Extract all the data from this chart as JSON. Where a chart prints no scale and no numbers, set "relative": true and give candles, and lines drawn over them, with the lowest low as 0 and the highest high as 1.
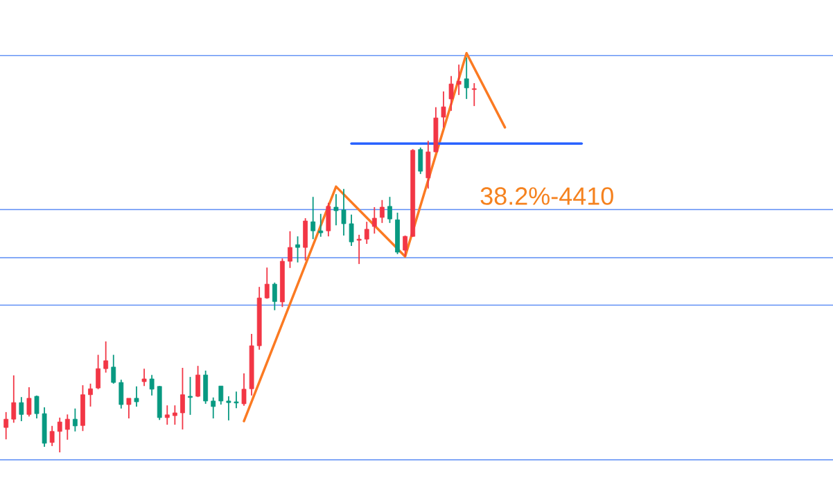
{
  "chart_data": {
    "type": "candlestick",
    "relative": true,
    "categories": [
      null,
      null,
      null,
      null,
      null,
      null,
      null,
      null,
      null,
      null,
      null,
      null,
      null,
      null,
      null,
      null,
      null,
      null,
      null,
      null,
      null,
      null,
      null,
      null,
      null,
      null,
      null,
      null,
      null,
      null,
      null,
      null,
      null,
      null,
      null,
      null,
      null,
      null,
      null,
      null,
      null,
      null,
      null,
      null,
      null,
      null,
      null,
      null,
      null,
      null,
      null,
      null,
      null,
      null,
      null,
      null,
      null,
      null,
      null,
      null,
      null,
      null,
      null,
      null,
      null,
      null,
      null,
      null,
      null,
      null,
      null,
      null,
      null,
      null,
      null,
      null
    ],
    "ohlc": [
      [
        0.063,
        0.102,
        0.033,
        0.084
      ],
      [
        0.084,
        0.195,
        0.075,
        0.126
      ],
      [
        0.126,
        0.14,
        0.079,
        0.096
      ],
      [
        0.096,
        0.165,
        0.091,
        0.137
      ],
      [
        0.142,
        0.144,
        0.086,
        0.098
      ],
      [
        0.098,
        0.114,
        0.014,
        0.023
      ],
      [
        0.025,
        0.067,
        0.016,
        0.053
      ],
      [
        0.053,
        0.088,
        0,
        0.077
      ],
      [
        0.058,
        0.096,
        0.032,
        0.084
      ],
      [
        0.084,
        0.111,
        0.053,
        0.067
      ],
      [
        0.068,
        0.17,
        0.054,
        0.146
      ],
      [
        0.146,
        0.174,
        0.116,
        0.161
      ],
      [
        0.163,
        0.247,
        0.16,
        0.212
      ],
      [
        0.212,
        0.281,
        0.202,
        0.232
      ],
      [
        0.216,
        0.247,
        0.174,
        0.177
      ],
      [
        0.177,
        0.184,
        0.111,
        0.121
      ],
      [
        0.121,
        0.137,
        0.086,
        0.137
      ],
      [
        0.137,
        0.167,
        0.116,
        0.128
      ],
      [
        0.179,
        0.212,
        0.168,
        0.186
      ],
      [
        0.186,
        0.196,
        0.144,
        0.16
      ],
      [
        0.167,
        0.168,
        0.082,
        0.088
      ],
      [
        0.088,
        0.119,
        0.07,
        0.095
      ],
      [
        0.093,
        0.119,
        0.07,
        0.1
      ],
      [
        0.1,
        0.214,
        0.058,
        0.146
      ],
      [
        0.142,
        0.191,
        0.095,
        0.139
      ],
      [
        0.142,
        0.219,
        0.14,
        0.196
      ],
      [
        0.196,
        0.207,
        0.123,
        0.13
      ],
      [
        0.13,
        0.139,
        0.086,
        0.116
      ],
      [
        0.168,
        0.168,
        0.121,
        0.13
      ],
      [
        0.13,
        0.142,
        0.081,
        0.126
      ],
      [
        0.128,
        0.154,
        0.112,
        0.125
      ],
      [
        0.123,
        0.2,
        0.118,
        0.16
      ],
      [
        0.161,
        0.3,
        0.144,
        0.27
      ],
      [
        0.27,
        0.419,
        0.26,
        0.391
      ],
      [
        0.391,
        0.468,
        0.389,
        0.426
      ],
      [
        0.426,
        0.43,
        0.36,
        0.382
      ],
      [
        0.381,
        0.491,
        0.368,
        0.484
      ],
      [
        0.484,
        0.56,
        0.467,
        0.519
      ],
      [
        0.526,
        0.547,
        0.481,
        0.519
      ],
      [
        0.519,
        0.593,
        0.486,
        0.586
      ],
      [
        0.584,
        0.647,
        0.54,
        0.561
      ],
      [
        0.561,
        0.604,
        0.546,
        0.556
      ],
      [
        0.561,
        0.632,
        0.547,
        0.623
      ],
      [
        0.621,
        0.654,
        0.575,
        0.612
      ],
      [
        0.614,
        0.667,
        0.549,
        0.579
      ],
      [
        0.579,
        0.602,
        0.523,
        0.533
      ],
      [
        0.537,
        0.551,
        0.477,
        0.54
      ],
      [
        0.54,
        0.584,
        0.528,
        0.565
      ],
      [
        0.572,
        0.621,
        0.554,
        0.593
      ],
      [
        0.595,
        0.639,
        0.581,
        0.621
      ],
      [
        0.623,
        0.647,
        0.581,
        0.591
      ],
      [
        0.589,
        0.607,
        0.502,
        0.507
      ],
      [
        0.512,
        0.549,
        0.496,
        0.547
      ],
      [
        0.547,
        0.768,
        0.546,
        0.765
      ],
      [
        0.767,
        0.772,
        0.705,
        0.712
      ],
      [
        0.695,
        0.789,
        0.668,
        0.761
      ],
      [
        0.761,
        0.874,
        0.761,
        0.847
      ],
      [
        0.849,
        0.914,
        0.823,
        0.875
      ],
      [
        0.895,
        0.953,
        0.865,
        0.933
      ],
      [
        0.932,
        0.982,
        0.905,
        0.94
      ],
      [
        0.946,
        1,
        0.895,
        0.923
      ],
      [
        0.919,
        0.935,
        0.877,
        0.921
      ],
      null,
      null,
      null,
      null,
      null,
      null,
      null,
      null,
      null,
      null,
      null,
      null,
      null,
      null
    ],
    "colors": [
      "#f23645",
      "#f23645",
      "#089981",
      "#f23645",
      "#089981",
      "#089981",
      "#f23645",
      "#f23645",
      "#f23645",
      "#089981",
      "#f23645",
      "#f23645",
      "#f23645",
      "#f23645",
      "#089981",
      "#089981",
      "#f23645",
      "#089981",
      "#f23645",
      "#089981",
      "#089981",
      "#f23645",
      "#f23645",
      "#f23645",
      "#089981",
      "#f23645",
      "#089981",
      "#089981",
      "#089981",
      "#089981",
      "#089981",
      "#f23645",
      "#f23645",
      "#f23645",
      "#f23645",
      "#089981",
      "#f23645",
      "#f23645",
      "#089981",
      "#f23645",
      "#089981",
      "#089981",
      "#f23645",
      "#089981",
      "#089981",
      "#089981",
      "#f23645",
      "#f23645",
      "#f23645",
      "#f23645",
      "#089981",
      "#089981",
      "#f23645",
      "#f23645",
      "#089981",
      "#f23645",
      "#f23645",
      "#f23645",
      "#f23645",
      "#f23645",
      "#089981",
      "#f23645",
      null,
      null,
      null,
      null,
      null,
      null,
      null,
      null,
      null,
      null,
      null,
      null,
      null,
      null
    ],
    "series": [
      {
        "type": "line",
        "color": "#fb7a22",
        "values": [
          null,
          null,
          null,
          null,
          null,
          null,
          null,
          null,
          null,
          null,
          null,
          null,
          null,
          null,
          null,
          null,
          null,
          null,
          null,
          null,
          null,
          null,
          null,
          null,
          null,
          null,
          null,
          null,
          null,
          null,
          null,
          0.079,
          null,
          null,
          null,
          null,
          null,
          null,
          null,
          null,
          null,
          null,
          null,
          0.673,
          null,
          null,
          null,
          null,
          null,
          null,
          null,
          null,
          0.496,
          null,
          null,
          null,
          null,
          null,
          null,
          null,
          1.011,
          null,
          null,
          null,
          null,
          0.823,
          null,
          null,
          null,
          null,
          null,
          null,
          null,
          null,
          null,
          null
        ]
      },
      {
        "type": "line",
        "color": "#2962ff",
        "values": [
          null,
          null,
          null,
          null,
          null,
          null,
          null,
          null,
          null,
          null,
          null,
          null,
          null,
          null,
          null,
          null,
          null,
          null,
          null,
          null,
          null,
          null,
          null,
          null,
          null,
          null,
          null,
          null,
          null,
          null,
          null,
          null,
          null,
          null,
          null,
          null,
          null,
          null,
          null,
          null,
          null,
          null,
          null,
          null,
          null,
          0.782,
          null,
          null,
          null,
          null,
          null,
          null,
          null,
          null,
          null,
          null,
          null,
          null,
          null,
          null,
          null,
          null,
          null,
          null,
          null,
          null,
          null,
          null,
          null,
          null,
          null,
          null,
          null,
          null,
          null,
          0.782
        ]
      }
    ],
    "ref_lines": [
      {
        "axis": "y",
        "value": 1.005,
        "color": "#5b8cf5"
      },
      {
        "axis": "y",
        "value": 0.615,
        "color": "#5b8cf5"
      },
      {
        "axis": "y",
        "value": 0.493,
        "color": "#5b8cf5"
      },
      {
        "axis": "y",
        "value": 0.373,
        "color": "#5b8cf5"
      },
      {
        "axis": "y",
        "value": -0.019,
        "color": "#5b8cf5"
      }
    ],
    "annotations": [
      "38.2%-4410"
    ]
  }
}
